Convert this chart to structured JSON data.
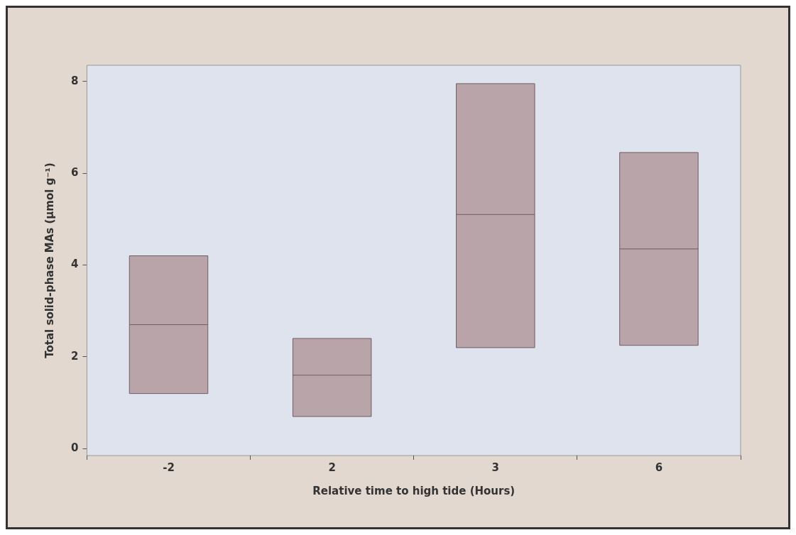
{
  "chart_data": {
    "type": "box",
    "xlabel": "Relative time to high tide (Hours)",
    "ylabel": "Total solid-phase MAs (µmol g⁻¹)",
    "categories": [
      "-2",
      "2",
      "3",
      "6"
    ],
    "color": "#b8a4a9",
    "boxes": [
      {
        "low": 1.2,
        "q1": 1.2,
        "median": 2.7,
        "q3": 4.2,
        "high": 4.2
      },
      {
        "low": 0.7,
        "q1": 0.7,
        "median": 1.6,
        "q3": 2.4,
        "high": 2.4
      },
      {
        "low": 2.2,
        "q1": 2.2,
        "median": 5.1,
        "q3": 7.95,
        "high": 7.95
      },
      {
        "low": 2.25,
        "q1": 2.25,
        "median": 4.35,
        "q3": 6.45,
        "high": 6.45
      }
    ],
    "ylim": [
      -0.15,
      8.35
    ],
    "yticks": [
      0,
      2,
      4,
      6,
      8
    ],
    "grid": false,
    "legend": false
  }
}
